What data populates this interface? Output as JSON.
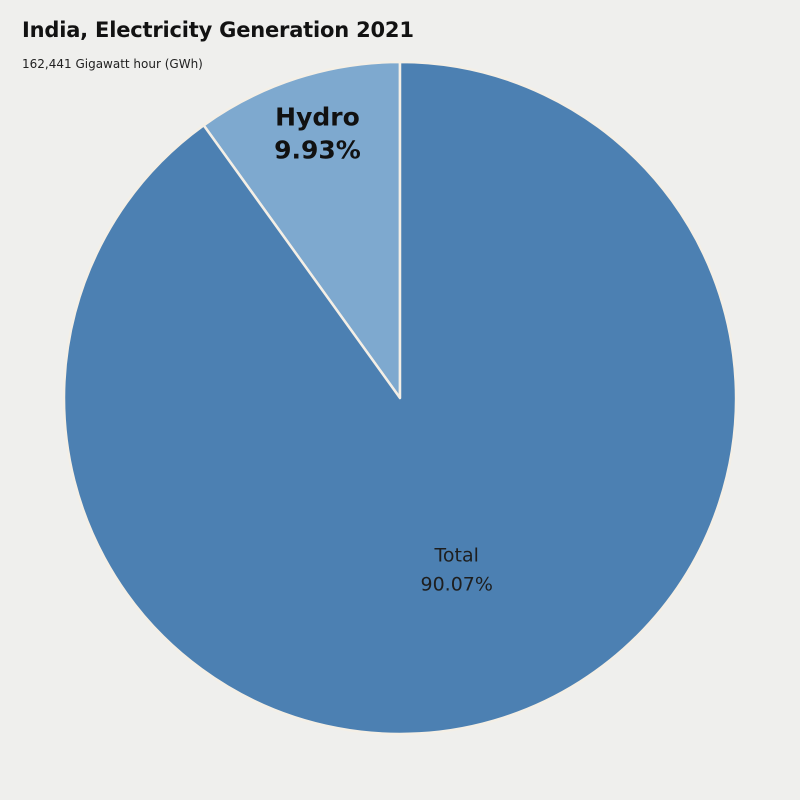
{
  "chart_data": {
    "type": "pie",
    "title": "India, Electricity Generation 2021",
    "subtitle": "162,441 Gigawatt hour (GWh)",
    "slices": [
      {
        "label": "Hydro",
        "value": 9.93,
        "value_label": "9.93%",
        "color": "#7ea9cf",
        "emphasis": true
      },
      {
        "label": "Total",
        "value": 90.07,
        "value_label": "90.07%",
        "color": "#4c80b2",
        "emphasis": false
      }
    ],
    "start": "top, clockwise-counter (Hydro left of 12 o'clock)",
    "background": "#efefed",
    "separator_color": "#f4efe6"
  }
}
